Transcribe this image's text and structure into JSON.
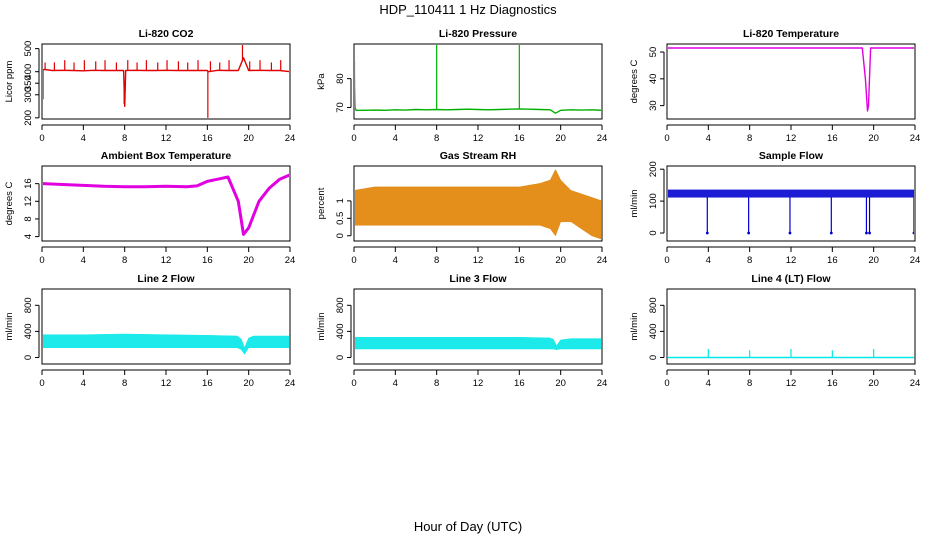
{
  "figure": {
    "title": "HDP_110411  1 Hz Diagnostics",
    "xlabel": "Hour of Day (UTC)"
  },
  "chart_data": [
    {
      "type": "line",
      "title": "Li-820 CO2",
      "ylabel": "Licor ppm",
      "color": "#e00000",
      "style": "line",
      "xlim": [
        0,
        24
      ],
      "ylim": [
        195,
        520
      ],
      "xticks": [
        0,
        4,
        8,
        12,
        16,
        20,
        24
      ],
      "yticks": [
        200,
        300,
        350,
        400,
        500
      ],
      "x": [
        0,
        0.2,
        1,
        2,
        3,
        4,
        5,
        6,
        7,
        7.9,
        8,
        8.1,
        9,
        10,
        11,
        12,
        13,
        14,
        15,
        16,
        16.1,
        17,
        18,
        19,
        19.5,
        20,
        21,
        22,
        23,
        24
      ],
      "values": [
        405,
        410,
        405,
        406,
        405,
        404,
        406,
        405,
        405,
        405,
        250,
        405,
        406,
        405,
        405,
        406,
        405,
        405,
        405,
        405,
        400,
        406,
        405,
        405,
        460,
        405,
        406,
        405,
        405,
        400
      ],
      "spikes": [
        [
          0.1,
          280
        ],
        [
          0.3,
          440
        ],
        [
          1.2,
          440
        ],
        [
          2.2,
          450
        ],
        [
          3.1,
          440
        ],
        [
          4.1,
          450
        ],
        [
          5.2,
          445
        ],
        [
          6.1,
          450
        ],
        [
          7.2,
          440
        ],
        [
          8.3,
          450
        ],
        [
          9.2,
          440
        ],
        [
          10.1,
          450
        ],
        [
          11.2,
          440
        ],
        [
          12.1,
          450
        ],
        [
          13.2,
          445
        ],
        [
          14.1,
          440
        ],
        [
          15.1,
          450
        ],
        [
          16.3,
          445
        ],
        [
          17.2,
          440
        ],
        [
          18.1,
          450
        ],
        [
          19.4,
          520
        ],
        [
          20.1,
          445
        ],
        [
          21.1,
          450
        ],
        [
          22.2,
          440
        ],
        [
          23.1,
          450
        ]
      ],
      "dips": [
        [
          7.95,
          260
        ],
        [
          16.05,
          200
        ]
      ]
    },
    {
      "type": "line",
      "title": "Li-820 Pressure",
      "ylabel": "kPa",
      "color": "#00b000",
      "style": "line",
      "xlim": [
        0,
        24
      ],
      "ylim": [
        66,
        92
      ],
      "xticks": [
        0,
        4,
        8,
        12,
        16,
        20,
        24
      ],
      "yticks": [
        70,
        80
      ],
      "x": [
        0,
        0.1,
        0.2,
        1,
        2,
        3,
        4,
        5,
        6,
        7,
        8,
        9,
        10,
        11,
        12,
        13,
        14,
        15,
        16,
        17,
        18,
        19,
        19.5,
        20,
        21,
        22,
        23,
        24
      ],
      "values": [
        86,
        70,
        69,
        69,
        69.1,
        69,
        69.2,
        69.1,
        69.3,
        69.2,
        69.3,
        69.2,
        69.3,
        69.4,
        69.3,
        69.2,
        69.3,
        69.4,
        69.5,
        69.4,
        69.3,
        69.2,
        68,
        69,
        69.2,
        69.1,
        69.2,
        69
      ],
      "spikes": [
        [
          0.05,
          86
        ],
        [
          8,
          92
        ],
        [
          16,
          92
        ],
        [
          24,
          91
        ]
      ],
      "dips": []
    },
    {
      "type": "line",
      "title": "Li-820 Temperature",
      "ylabel": "degrees C",
      "color": "#e000e0",
      "style": "line",
      "xlim": [
        0,
        24
      ],
      "ylim": [
        25,
        53
      ],
      "xticks": [
        0,
        4,
        8,
        12,
        16,
        20,
        24
      ],
      "yticks": [
        30,
        40,
        50
      ],
      "x": [
        0,
        1,
        4,
        8,
        12,
        16,
        18,
        18.9,
        19.2,
        19.4,
        19.5,
        19.7,
        20,
        22,
        24
      ],
      "values": [
        51.5,
        51.5,
        51.5,
        51.5,
        51.5,
        51.5,
        51.5,
        51.5,
        40,
        28,
        30,
        51.5,
        51.5,
        51.5,
        51.5
      ],
      "spikes": [],
      "dips": []
    },
    {
      "type": "line",
      "title": "Ambient Box Temperature",
      "ylabel": "degrees C",
      "color": "#e000e0",
      "style": "thick",
      "xlim": [
        0,
        24
      ],
      "ylim": [
        3,
        20
      ],
      "xticks": [
        0,
        4,
        8,
        12,
        16,
        20,
        24
      ],
      "yticks": [
        4,
        8,
        12,
        16
      ],
      "x": [
        0,
        2,
        4,
        6,
        8,
        10,
        12,
        14,
        15,
        16,
        17,
        18,
        19,
        19.5,
        20,
        21,
        22,
        23,
        24
      ],
      "values": [
        16,
        15.8,
        15.6,
        15.4,
        15.3,
        15.3,
        15.4,
        15.3,
        15.5,
        16.5,
        17,
        17.5,
        12,
        4.5,
        6,
        12,
        15,
        17,
        18
      ],
      "spikes": [],
      "dips": []
    },
    {
      "type": "area",
      "title": "Gas Stream RH",
      "ylabel": "percent",
      "color": "#e08000",
      "style": "band",
      "xlim": [
        0,
        24
      ],
      "ylim": [
        -0.15,
        2.0
      ],
      "xticks": [
        0,
        4,
        8,
        12,
        16,
        20,
        24
      ],
      "yticks": [
        0.0,
        0.5,
        1.0
      ],
      "x": [
        0,
        2,
        4,
        6,
        8,
        10,
        12,
        14,
        16,
        18,
        19,
        19.5,
        20,
        21,
        22,
        23,
        24
      ],
      "upper": [
        1.3,
        1.4,
        1.4,
        1.4,
        1.4,
        1.4,
        1.4,
        1.4,
        1.4,
        1.5,
        1.6,
        1.9,
        1.6,
        1.3,
        1.2,
        1.1,
        1.0
      ],
      "lower": [
        0.3,
        0.3,
        0.3,
        0.3,
        0.3,
        0.3,
        0.3,
        0.3,
        0.3,
        0.3,
        0.2,
        0.0,
        0.4,
        0.4,
        0.2,
        0.0,
        -0.1
      ],
      "spikes": [],
      "dips": []
    },
    {
      "type": "line",
      "title": "Sample Flow",
      "ylabel": "ml/min",
      "color": "#0000d0",
      "style": "band",
      "xlim": [
        0,
        24
      ],
      "ylim": [
        -25,
        210
      ],
      "xticks": [
        0,
        4,
        8,
        12,
        16,
        20,
        24
      ],
      "yticks": [
        0,
        100,
        200
      ],
      "x": [
        0,
        4,
        8,
        12,
        16,
        20,
        24
      ],
      "upper": [
        135,
        135,
        135,
        135,
        135,
        135,
        135
      ],
      "lower": [
        112,
        112,
        112,
        112,
        112,
        112,
        112
      ],
      "spikes": [],
      "dips": [
        [
          3.9,
          0
        ],
        [
          7.9,
          0
        ],
        [
          11.9,
          0
        ],
        [
          15.9,
          0
        ],
        [
          19.3,
          0
        ],
        [
          19.6,
          0
        ],
        [
          23.9,
          0
        ]
      ]
    },
    {
      "type": "area",
      "title": "Line 2 Flow",
      "ylabel": "ml/min",
      "color": "#00e8e8",
      "style": "band",
      "xlim": [
        0,
        24
      ],
      "ylim": [
        -100,
        1050
      ],
      "xticks": [
        0,
        4,
        8,
        12,
        16,
        20,
        24
      ],
      "yticks": [
        0,
        400,
        800
      ],
      "x": [
        0,
        4,
        8,
        12,
        16,
        18.9,
        19.3,
        19.6,
        20,
        20.5,
        24
      ],
      "upper": [
        350,
        350,
        360,
        350,
        340,
        330,
        280,
        150,
        300,
        330,
        330
      ],
      "lower": [
        150,
        150,
        150,
        150,
        150,
        150,
        120,
        50,
        150,
        150,
        150
      ],
      "spikes": [],
      "dips": []
    },
    {
      "type": "area",
      "title": "Line 3 Flow",
      "ylabel": "ml/min",
      "color": "#00e8e8",
      "style": "band",
      "xlim": [
        0,
        24
      ],
      "ylim": [
        -100,
        1050
      ],
      "xticks": [
        0,
        4,
        8,
        12,
        16,
        20,
        24
      ],
      "yticks": [
        0,
        400,
        800
      ],
      "x": [
        0,
        4,
        8,
        12,
        16,
        18.9,
        19.3,
        19.6,
        20,
        21,
        24
      ],
      "upper": [
        310,
        310,
        310,
        310,
        310,
        300,
        280,
        180,
        270,
        290,
        290
      ],
      "lower": [
        130,
        130,
        130,
        130,
        130,
        130,
        130,
        120,
        130,
        130,
        130
      ],
      "spikes": [],
      "dips": []
    },
    {
      "type": "line",
      "title": "Line 4 (LT) Flow",
      "ylabel": "ml/min",
      "color": "#00e8e8",
      "style": "line",
      "xlim": [
        0,
        24
      ],
      "ylim": [
        -100,
        1050
      ],
      "xticks": [
        0,
        4,
        8,
        12,
        16,
        20,
        24
      ],
      "yticks": [
        0,
        400,
        800
      ],
      "x": [
        0,
        24
      ],
      "values": [
        0,
        0
      ],
      "spikes": [
        [
          4,
          130
        ],
        [
          8,
          110
        ],
        [
          12,
          130
        ],
        [
          16,
          110
        ],
        [
          20,
          130
        ],
        [
          24,
          100
        ]
      ],
      "dips": []
    }
  ]
}
